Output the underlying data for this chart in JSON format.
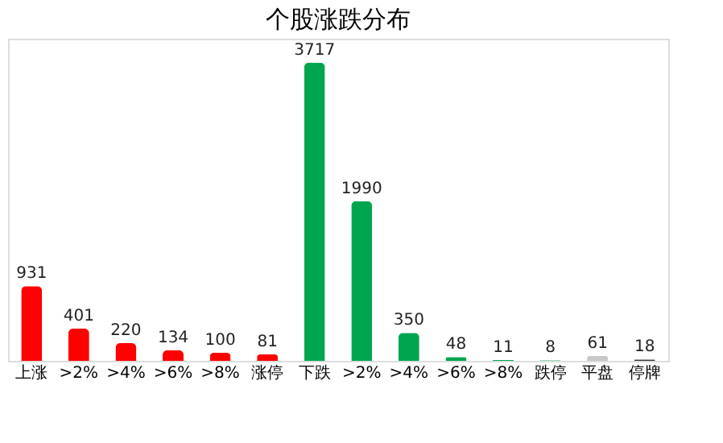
{
  "chart_data": {
    "type": "bar",
    "title": "个股涨跌分布",
    "categories": [
      "上涨",
      ">2%",
      ">4%",
      ">6%",
      ">8%",
      "涨停",
      "下跌",
      ">2%",
      ">4%",
      ">6%",
      ">8%",
      "跌停",
      "平盘",
      "停牌"
    ],
    "values": [
      931,
      401,
      220,
      134,
      100,
      81,
      3717,
      1990,
      350,
      48,
      11,
      8,
      61,
      18
    ],
    "colors": [
      "#ff0000",
      "#ff0000",
      "#ff0000",
      "#ff0000",
      "#ff0000",
      "#ff0000",
      "#00a550",
      "#00a550",
      "#00a550",
      "#00a550",
      "#00a550",
      "#00a550",
      "#c8c8c8",
      "#333333"
    ],
    "data_labels": true
  }
}
